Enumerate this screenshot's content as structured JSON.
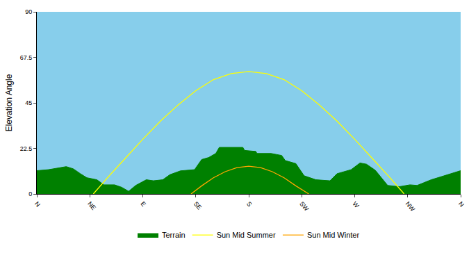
{
  "chart_data": {
    "type": "line",
    "ylabel": "Elevation Angle",
    "xlim": [
      0,
      360
    ],
    "xticks": [
      {
        "value": 0,
        "label": "N"
      },
      {
        "value": 45,
        "label": "NE"
      },
      {
        "value": 90,
        "label": "E"
      },
      {
        "value": 135,
        "label": "SE"
      },
      {
        "value": 180,
        "label": "S"
      },
      {
        "value": 225,
        "label": "SW"
      },
      {
        "value": 270,
        "label": "W"
      },
      {
        "value": 315,
        "label": "NW"
      },
      {
        "value": 360,
        "label": "N"
      }
    ],
    "ylim": [
      0,
      90
    ],
    "yticks": [
      0,
      22.5,
      45,
      67.5,
      90
    ],
    "grid": false,
    "legend": "bottom",
    "series": [
      {
        "name": "Terrain",
        "type": "area",
        "color": "#008000",
        "x": [
          0,
          10,
          25,
          31,
          37,
          42.5,
          51,
          57,
          66,
          72,
          78,
          84,
          93,
          99,
          107,
          113,
          122,
          134,
          140,
          146,
          152,
          155,
          175,
          176.5,
          186,
          187,
          199,
          208,
          211,
          220,
          227,
          237,
          249,
          255,
          267,
          274.5,
          280,
          287.5,
          298,
          308,
          317,
          323,
          335,
          346.5,
          360
        ],
        "values": [
          11.5,
          12,
          13.5,
          12.4,
          10,
          8,
          7,
          4.5,
          4.5,
          3.3,
          1.3,
          4.2,
          7,
          6.5,
          7,
          9.5,
          11.4,
          12,
          17,
          18,
          20,
          23,
          23,
          21.5,
          21,
          20,
          20,
          19,
          16.5,
          15,
          9,
          7,
          6.5,
          10,
          12,
          15.3,
          14.7,
          11.7,
          4.2,
          3.6,
          4.5,
          4.2,
          7,
          9,
          11.5
        ]
      },
      {
        "name": "Sun Mid Summer",
        "type": "line",
        "color": "#ffff00",
        "x": [
          48,
          60,
          75,
          90,
          105,
          120,
          135,
          150,
          165,
          180,
          195,
          210,
          225,
          240,
          255,
          270,
          285,
          300,
          312
        ],
        "values": [
          0,
          8,
          17.5,
          27,
          36,
          44,
          51,
          56.5,
          59.5,
          60.5,
          59.5,
          56.5,
          51,
          44,
          36,
          27,
          17.5,
          8,
          0
        ]
      },
      {
        "name": "Sun Mid Winter",
        "type": "line",
        "color": "#ffa500",
        "x": [
          131,
          140,
          150,
          160,
          170,
          180,
          190,
          200,
          210,
          220,
          231
        ],
        "values": [
          0,
          4,
          8,
          11,
          13,
          13.7,
          13,
          11,
          8,
          4,
          0
        ]
      }
    ]
  }
}
